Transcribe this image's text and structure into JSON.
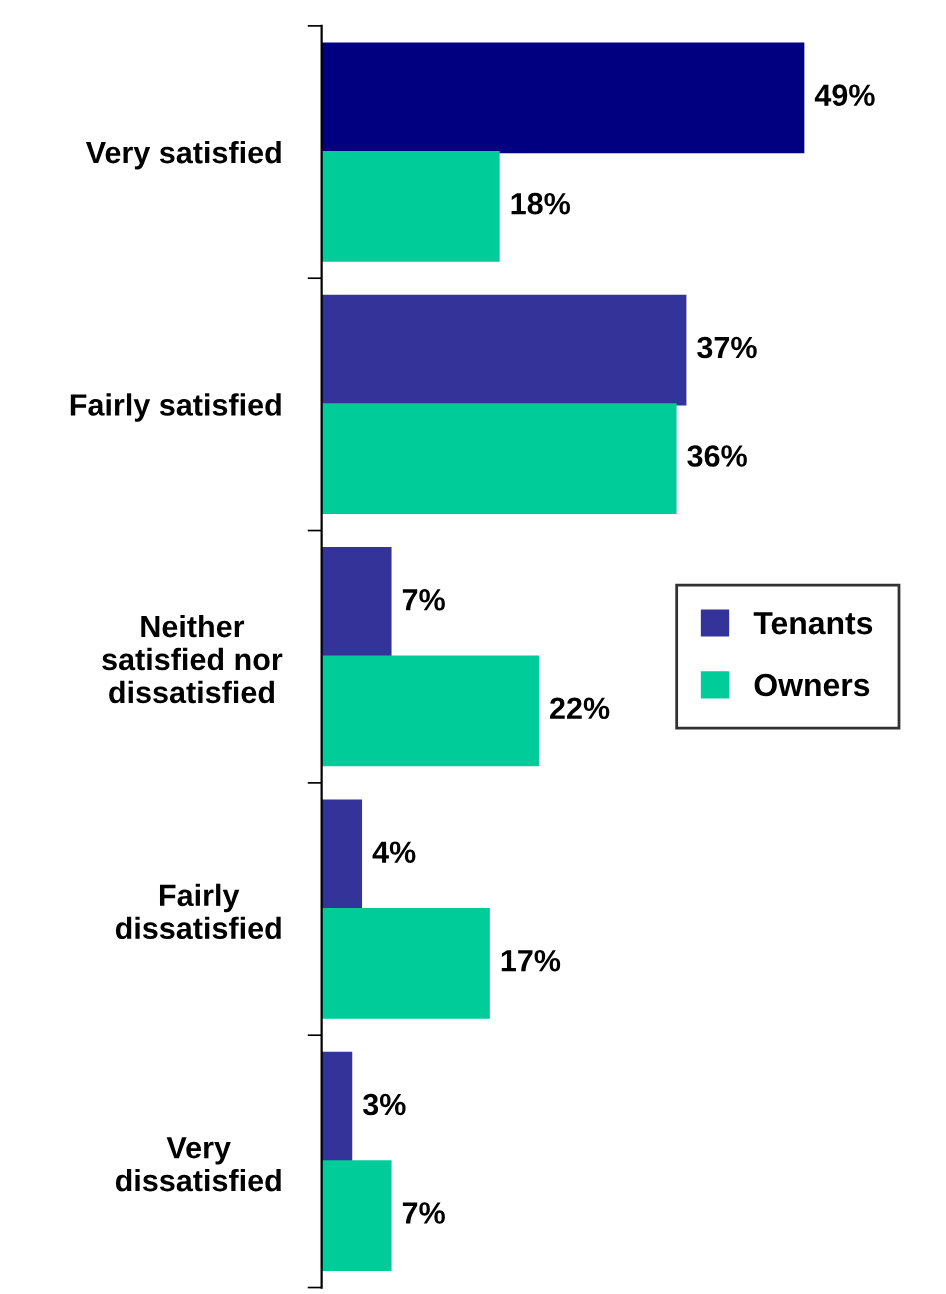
{
  "chart_data": {
    "type": "bar",
    "orientation": "horizontal",
    "categories": [
      "Very satisfied",
      "Fairly satisfied",
      "Neither\nsatisfied nor\ndissatisfied",
      "Fairly\ndissatisfied",
      "Very\ndissatisfied"
    ],
    "series": [
      {
        "name": "Tenants",
        "color": "#333399",
        "colors": [
          "#000080",
          "#333399",
          "#333399",
          "#333399",
          "#333399"
        ],
        "values": [
          49,
          37,
          7,
          4,
          3
        ],
        "value_labels": [
          "49%",
          "37%",
          "7%",
          "4%",
          "3%"
        ]
      },
      {
        "name": "Owners",
        "color": "#00cc99",
        "values": [
          18,
          36,
          22,
          17,
          7
        ],
        "value_labels": [
          "18%",
          "36%",
          "22%",
          "17%",
          "7%"
        ]
      }
    ],
    "legend": "right",
    "grid": false
  }
}
